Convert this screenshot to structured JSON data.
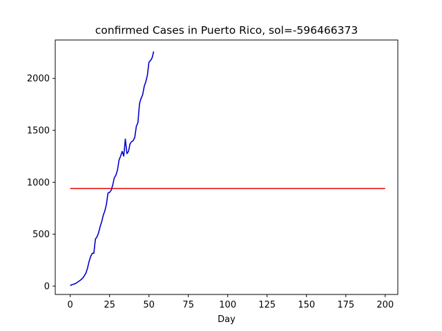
{
  "chart_data": {
    "type": "line",
    "title": "confirmed Cases in Puerto Rico, sol=-596466373",
    "xlabel": "Day",
    "ylabel": "",
    "xlim": [
      -9.5,
      208
    ],
    "ylim": [
      -80,
      2370
    ],
    "xticks": [
      0,
      25,
      50,
      75,
      100,
      125,
      150,
      175,
      200
    ],
    "yticks": [
      0,
      500,
      1000,
      1500,
      2000
    ],
    "grid": false,
    "series": [
      {
        "color": "#0000cc",
        "x": [
          0,
          1,
          2,
          3,
          4,
          5,
          6,
          7,
          8,
          9,
          10,
          11,
          12,
          13,
          14,
          15,
          16,
          17,
          18,
          19,
          20,
          21,
          22,
          23,
          24,
          25,
          26,
          27,
          28,
          29,
          30,
          31,
          32,
          33,
          34,
          35,
          36,
          37,
          38,
          39,
          40,
          41,
          42,
          43,
          44,
          45,
          46,
          47,
          48,
          49,
          50,
          51,
          52,
          53
        ],
        "y": [
          5,
          14,
          18,
          23,
          31,
          42,
          52,
          64,
          79,
          100,
          127,
          174,
          239,
          286,
          316,
          316,
          452,
          475,
          513,
          573,
          620,
          683,
          725,
          788,
          897,
          903,
          923,
          974,
          1043,
          1068,
          1118,
          1213,
          1252,
          1298,
          1252,
          1416,
          1276,
          1298,
          1371,
          1392,
          1400,
          1433,
          1539,
          1575,
          1757,
          1808,
          1843,
          1924,
          1968,
          2031,
          2156,
          2173,
          2198,
          2260
        ]
      },
      {
        "color": "#e00000",
        "x": [
          0,
          200
        ],
        "y": [
          940,
          940
        ]
      }
    ]
  }
}
